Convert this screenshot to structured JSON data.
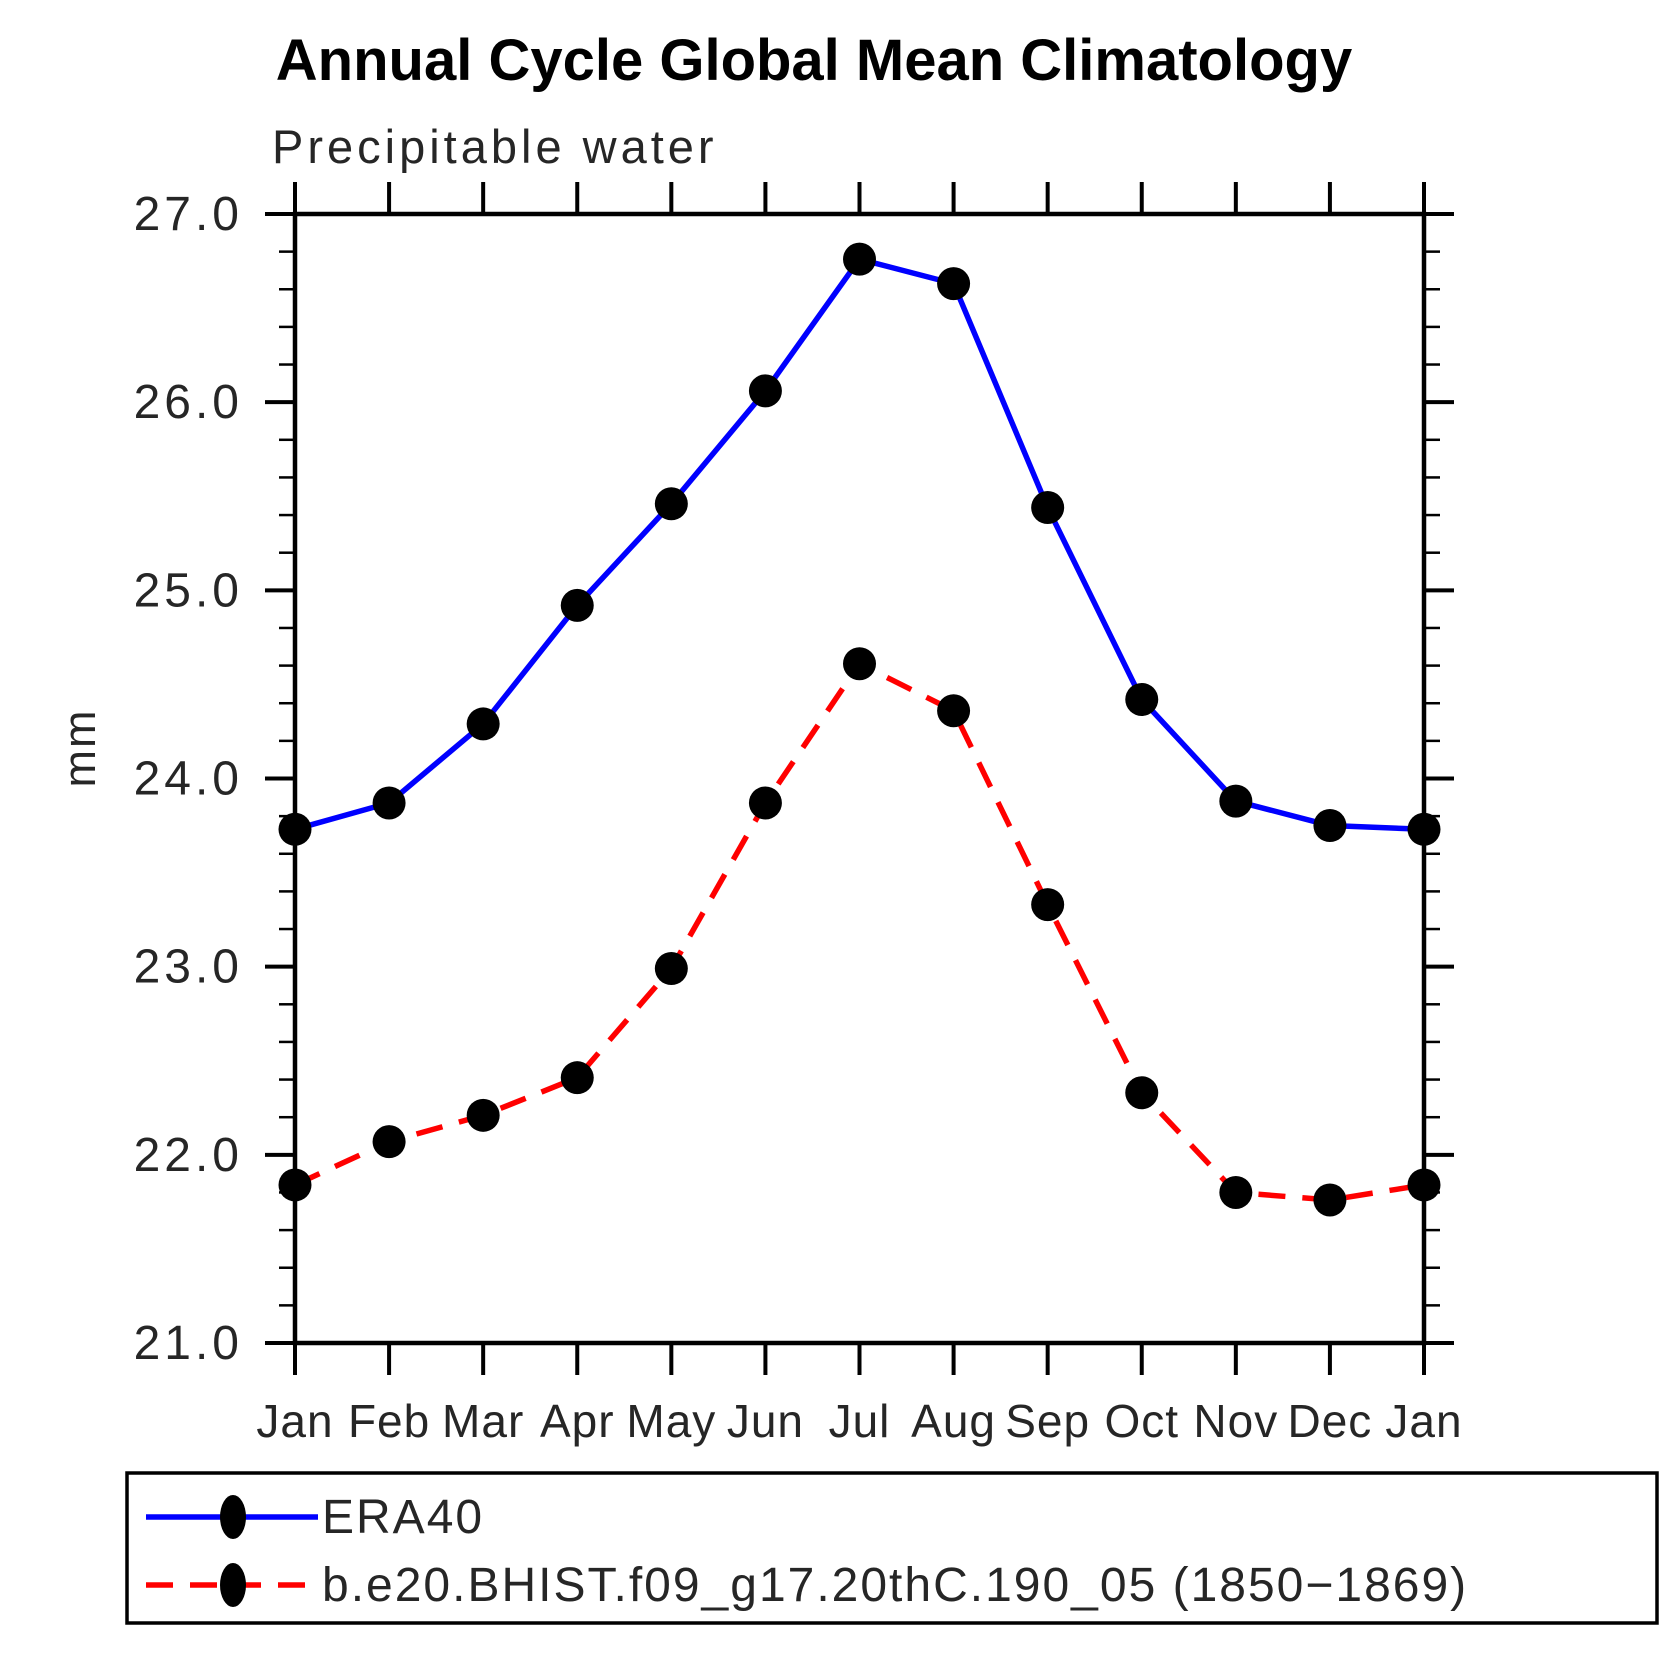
{
  "title": "Annual Cycle Global Mean Climatology",
  "subtitle": "Precipitable water",
  "chart_data": {
    "type": "line",
    "title": "Annual Cycle Global Mean Climatology",
    "subtitle": "Precipitable water",
    "xlabel": "",
    "ylabel": "mm",
    "ylim": [
      21.0,
      27.0
    ],
    "grid": false,
    "legend_position": "bottom",
    "categories": [
      "Jan",
      "Feb",
      "Mar",
      "Apr",
      "May",
      "Jun",
      "Jul",
      "Aug",
      "Sep",
      "Oct",
      "Nov",
      "Dec",
      "Jan"
    ],
    "y_ticks": [
      {
        "label": "27.0",
        "value": 27.0
      },
      {
        "label": "26.0",
        "value": 26.0
      },
      {
        "label": "25.0",
        "value": 25.0
      },
      {
        "label": "24.0",
        "value": 24.0
      },
      {
        "label": "23.0",
        "value": 23.0
      },
      {
        "label": "22.0",
        "value": 22.0
      },
      {
        "label": "21.0",
        "value": 21.0
      }
    ],
    "y_minor_step": 0.2,
    "series": [
      {
        "name": "ERA40",
        "color": "#0000ff",
        "line_style": "solid",
        "marker": "filled-circle",
        "marker_color": "#000000",
        "values": [
          23.73,
          23.87,
          24.29,
          24.92,
          25.46,
          26.06,
          26.76,
          26.63,
          25.44,
          24.42,
          23.88,
          23.75,
          23.73
        ]
      },
      {
        "name": "b.e20.BHIST.f09_g17.20thC.190_05 (1850−1869)",
        "color": "#ff0000",
        "line_style": "dashed",
        "marker": "filled-circle",
        "marker_color": "#000000",
        "values": [
          21.84,
          22.07,
          22.21,
          22.41,
          22.99,
          23.87,
          24.61,
          24.36,
          23.33,
          22.33,
          21.8,
          21.76,
          21.84
        ]
      }
    ]
  }
}
